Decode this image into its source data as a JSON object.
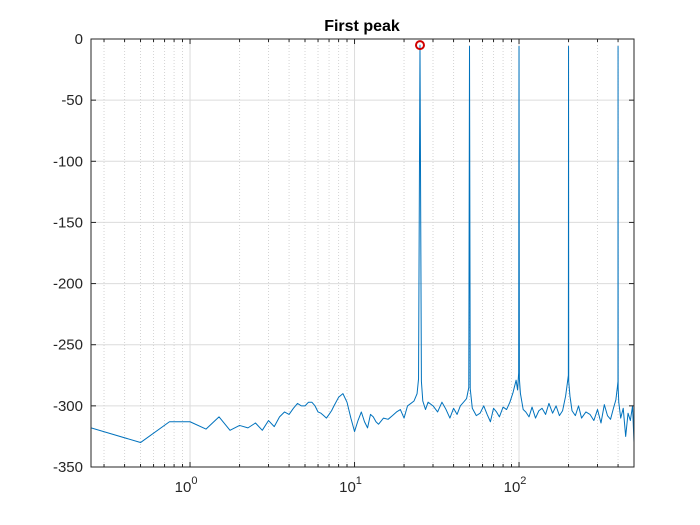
{
  "chart_data": {
    "type": "line",
    "title": "First peak",
    "xlabel": "",
    "ylabel": "",
    "xscale": "log",
    "xlim": [
      0.25,
      500
    ],
    "ylim": [
      -350,
      0
    ],
    "grid": true,
    "y_ticks": [
      0,
      -50,
      -100,
      -150,
      -200,
      -250,
      -300,
      -350
    ],
    "x_ticks": [
      {
        "value": 1,
        "base": "10",
        "exp": "0"
      },
      {
        "value": 10,
        "base": "10",
        "exp": "1"
      },
      {
        "value": 100,
        "base": "10",
        "exp": "2"
      }
    ],
    "series": [
      {
        "color": "#0072BD",
        "x": [
          0.25,
          0.5,
          0.75,
          1.0,
          1.25,
          1.5,
          1.75,
          2.0,
          2.25,
          2.5,
          2.75,
          3.0,
          3.25,
          3.5,
          3.75,
          4.0,
          4.25,
          4.5,
          4.75,
          5.0,
          5.25,
          5.5,
          5.75,
          6.0,
          6.25,
          6.5,
          6.75,
          7.0,
          7.25,
          7.5,
          8.0,
          8.5,
          9.0,
          9.5,
          10.0,
          10.5,
          11.0,
          11.5,
          12.0,
          12.5,
          13.0,
          13.5,
          14.0,
          15.0,
          16.0,
          17.0,
          18.0,
          19.0,
          20.0,
          21.0,
          22.0,
          23.0,
          24.0,
          24.5,
          25.0,
          25.5,
          26.0,
          27.0,
          28.0,
          30.0,
          32.0,
          34.0,
          36.0,
          38.0,
          40.0,
          42.0,
          44.0,
          46.0,
          48.0,
          49.5,
          50.0,
          50.5,
          52.0,
          55.0,
          58.0,
          61.0,
          64.0,
          67.0,
          70.0,
          73.0,
          76.0,
          80.0,
          84.0,
          88.0,
          92.0,
          96.0,
          98.0,
          99.5,
          100.0,
          100.5,
          102.0,
          106.0,
          110.0,
          115.0,
          120.0,
          126.0,
          132.0,
          138.0,
          145.0,
          152.0,
          160.0,
          168.0,
          176.0,
          184.0,
          192.0,
          196.0,
          199.5,
          200.0,
          200.5,
          204.0,
          210.0,
          220.0,
          230.0,
          240.0,
          255.0,
          270.0,
          285.0,
          300.0,
          315.0,
          330.0,
          345.0,
          360.0,
          375.0,
          388.0,
          396.0,
          399.5,
          400.0,
          400.5,
          404.0,
          415.0,
          430.0,
          445.0,
          460.0,
          475.0,
          490.0,
          500.0
        ],
        "y": [
          -318,
          -330,
          -313,
          -313,
          -319,
          -309,
          -320,
          -316,
          -318,
          -314,
          -320,
          -312,
          -317,
          -309,
          -305,
          -307,
          -302,
          -298,
          -300,
          -300,
          -297,
          -297,
          -300,
          -305,
          -306,
          -308,
          -310,
          -307,
          -304,
          -300,
          -293,
          -290,
          -297,
          -310,
          -321,
          -312,
          -305,
          -313,
          -318,
          -307,
          -309,
          -313,
          -315,
          -310,
          -311,
          -308,
          -305,
          -303,
          -310,
          -300,
          -298,
          -296,
          -290,
          -278,
          -5,
          -280,
          -296,
          -303,
          -297,
          -300,
          -305,
          -297,
          -303,
          -310,
          -302,
          -307,
          -300,
          -297,
          -294,
          -285,
          -6,
          -286,
          -302,
          -308,
          -306,
          -300,
          -307,
          -313,
          -302,
          -305,
          -309,
          -301,
          -303,
          -297,
          -289,
          -279,
          -287,
          -273,
          -6,
          -278,
          -290,
          -303,
          -305,
          -309,
          -301,
          -310,
          -304,
          -302,
          -307,
          -298,
          -306,
          -300,
          -308,
          -304,
          -292,
          -283,
          -275,
          -6,
          -280,
          -292,
          -304,
          -308,
          -300,
          -310,
          -305,
          -307,
          -312,
          -303,
          -314,
          -299,
          -308,
          -311,
          -302,
          -295,
          -285,
          -280,
          -6,
          -285,
          -297,
          -310,
          -302,
          -325,
          -306,
          -312,
          -300,
          -330
        ]
      }
    ],
    "markers": [
      {
        "x": 25.0,
        "y": -5,
        "shape": "circle",
        "color": "#D00000"
      }
    ]
  }
}
